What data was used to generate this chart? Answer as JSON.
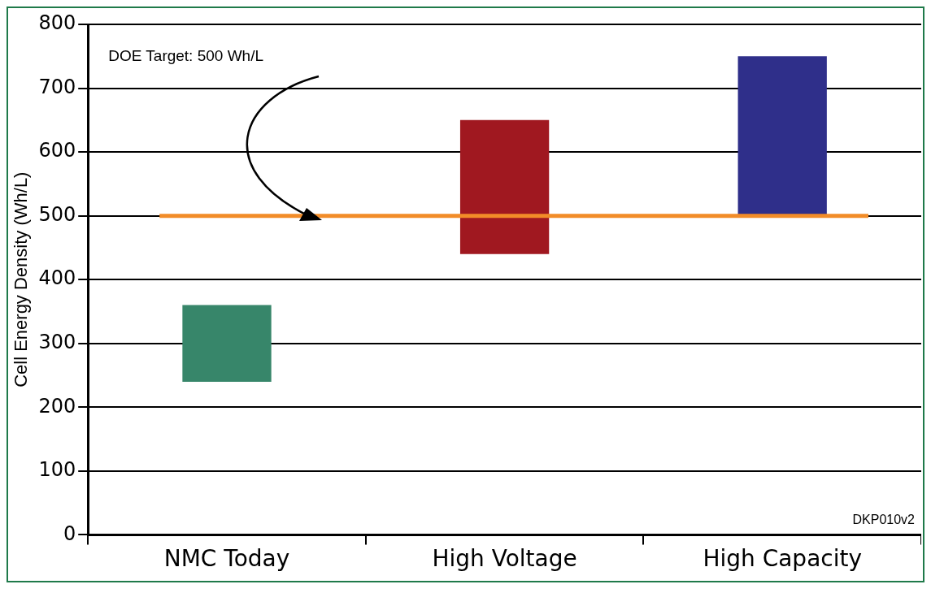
{
  "chart_data": {
    "type": "bar",
    "categories": [
      "NMC Today",
      "High Voltage",
      "High Capacity"
    ],
    "values": [
      120,
      210,
      250
    ],
    "base": [
      240,
      440,
      500
    ],
    "colors": [
      "#37866a",
      "#a01820",
      "#2f2f8a"
    ],
    "ylabel": "Cell Energy Density (Wh/L)",
    "ylim": [
      0,
      800
    ],
    "yticks": [
      0,
      100,
      200,
      300,
      400,
      500,
      600,
      700,
      800
    ],
    "grid": "y",
    "ref_lines": [
      {
        "axis": "y",
        "value": 500,
        "color": "#f28c28"
      }
    ],
    "annotations": [
      "DOE Target: 500 Wh/L",
      "DKP010v2"
    ]
  }
}
